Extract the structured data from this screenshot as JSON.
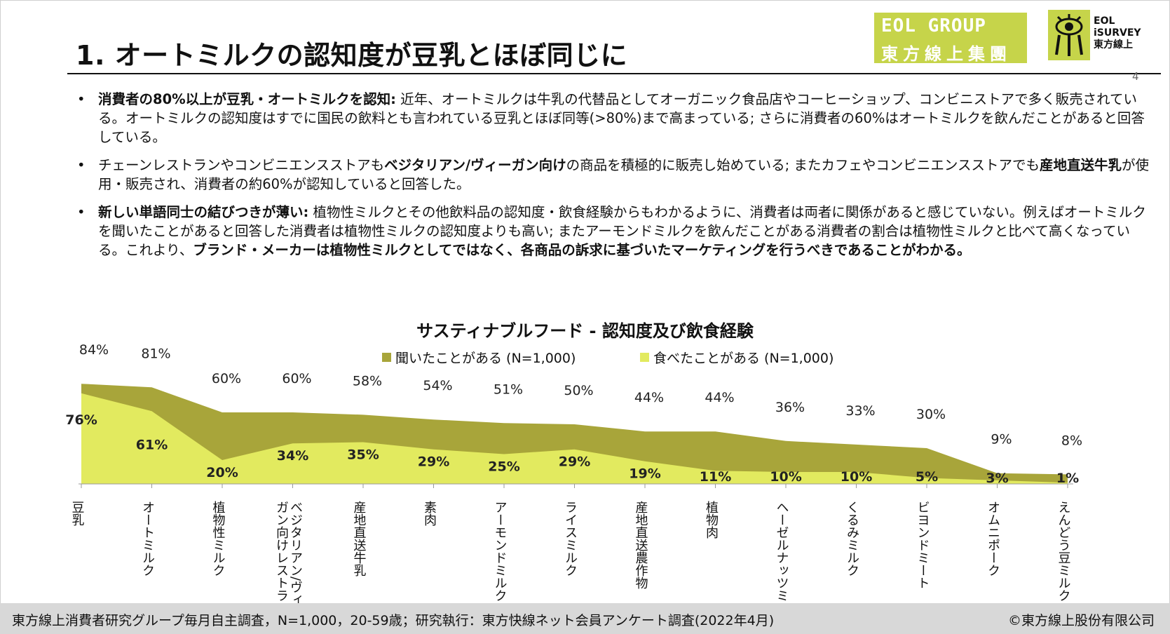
{
  "header": {
    "title": "1. オートミルクの認知度が豆乳とほぼ同じに",
    "page_number": "4"
  },
  "logos": {
    "eol_group_en": "EOL GROUP",
    "eol_group_zh": "東方線上集團",
    "isurvey_line1": "EOL",
    "isurvey_line2": "iSURVEY",
    "isurvey_line3": "東方線上"
  },
  "bullets": [
    {
      "parts": [
        {
          "text": "消費者の80%以上が豆乳・オートミルクを認知:",
          "bold": true
        },
        {
          "text": " 近年、オートミルクは牛乳の代替品としてオーガニック食品店やコーヒーショップ、コンビニストアで多く販売されている。オートミルクの認知度はすでに国民の飲料とも言われている豆乳とほぼ同等(>80%)まで高まっている; さらに消費者の60%はオートミルクを飲んだことがあると回答している。",
          "bold": false
        }
      ]
    },
    {
      "parts": [
        {
          "text": "チェーンレストランやコンビニエンスストアも",
          "bold": false
        },
        {
          "text": "ベジタリアン/ヴィーガン向け",
          "bold": true
        },
        {
          "text": "の商品を積極的に販売し始めている; またカフェやコンビニエンスストアでも",
          "bold": false
        },
        {
          "text": "産地直送牛乳",
          "bold": true
        },
        {
          "text": "が使用・販売され、消費者の約60%が認知していると回答した。",
          "bold": false
        }
      ]
    },
    {
      "parts": [
        {
          "text": "新しい単語同士の結びつきが薄い:",
          "bold": true
        },
        {
          "text": " 植物性ミルクとその他飲料品の認知度・飲食経験からもわかるように、消費者は両者に関係があると感じていない。例えばオートミルクを聞いたことがあると回答した消費者は植物性ミルクの認知度よりも高い; またアーモンドミルクを飲んだことがある消費者の割合は植物性ミルクと比べて高くなっている。これより、",
          "bold": false
        },
        {
          "text": "ブランド・メーカーは植物性ミルクとしてではなく、各商品の訴求に基づいたマーケティングを行うべきであることがわかる。",
          "bold": true
        }
      ]
    }
  ],
  "chart_data": {
    "type": "area",
    "title": "サスティナブルフード - 認知度及び飲食経験",
    "categories": [
      "豆乳",
      "オートミルク",
      "植物性ミルク",
      "ベジタリアン/ヴィーガン向けレストラン",
      "産地直送牛乳",
      "素肉",
      "アーモンドミルク",
      "ライスミルク",
      "産地直送農作物",
      "植物肉",
      "ヘーゼルナッツミルク",
      "くるみミルク",
      "ビヨンドミート",
      "オムニポーク",
      "えんどう豆ミルク"
    ],
    "series": [
      {
        "name": "聞いたことがある (N=1,000)",
        "color": "#a8a53a",
        "values": [
          84,
          81,
          60,
          60,
          58,
          54,
          51,
          50,
          44,
          44,
          36,
          33,
          30,
          9,
          8
        ]
      },
      {
        "name": "食べたことがある (N=1,000)",
        "color": "#e2ea5f",
        "values": [
          76,
          61,
          20,
          34,
          35,
          29,
          25,
          29,
          19,
          11,
          10,
          10,
          5,
          3,
          1
        ]
      }
    ],
    "ylim": [
      0,
      100
    ],
    "value_format": "percent",
    "legend_position": "top",
    "grid": false
  },
  "footer": {
    "source": "東方線上消費者研究グループ毎月自主調査，N=1,000，20-59歳；研究執行：東方快線ネット会員アンケート調査(2022年4月)",
    "copyright": "©東方線上股份有限公司"
  }
}
